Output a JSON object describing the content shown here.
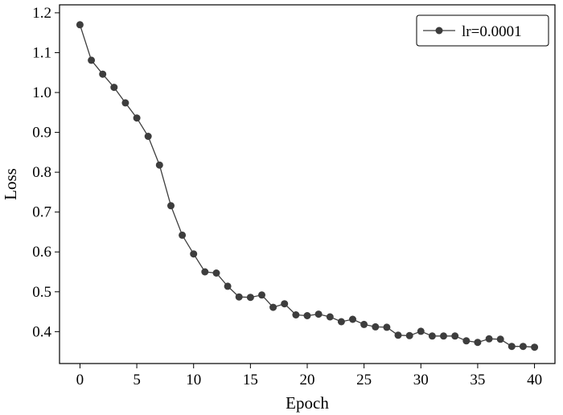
{
  "chart_data": {
    "type": "line",
    "title": "",
    "xlabel": "Epoch",
    "ylabel": "Loss",
    "xlim": [
      -1.8,
      41.8
    ],
    "ylim": [
      0.32,
      1.22
    ],
    "xticks": [
      0,
      5,
      10,
      15,
      20,
      25,
      30,
      35,
      40
    ],
    "xtick_labels": [
      "0",
      "5",
      "10",
      "15",
      "20",
      "25",
      "30",
      "35",
      "40"
    ],
    "yticks": [
      0.4,
      0.5,
      0.6,
      0.7,
      0.8,
      0.9,
      1.0,
      1.1,
      1.2
    ],
    "ytick_labels": [
      "0.4",
      "0.5",
      "0.6",
      "0.7",
      "0.8",
      "0.9",
      "1.0",
      "1.1",
      "1.2"
    ],
    "grid": false,
    "legend_position": "top-right",
    "series": [
      {
        "name": "lr=0.0001",
        "color": "#3d3d3d",
        "marker": "circle",
        "x": [
          0,
          1,
          2,
          3,
          4,
          5,
          6,
          7,
          8,
          9,
          10,
          11,
          12,
          13,
          14,
          15,
          16,
          17,
          18,
          19,
          20,
          21,
          22,
          23,
          24,
          25,
          26,
          27,
          28,
          29,
          30,
          31,
          32,
          33,
          34,
          35,
          36,
          37,
          38,
          39,
          40
        ],
        "y": [
          1.17,
          1.081,
          1.046,
          1.013,
          0.974,
          0.936,
          0.89,
          0.818,
          0.716,
          0.642,
          0.595,
          0.55,
          0.547,
          0.514,
          0.487,
          0.486,
          0.492,
          0.461,
          0.47,
          0.442,
          0.44,
          0.444,
          0.437,
          0.425,
          0.431,
          0.418,
          0.412,
          0.411,
          0.391,
          0.39,
          0.401,
          0.389,
          0.389,
          0.389,
          0.377,
          0.373,
          0.382,
          0.381,
          0.363,
          0.363,
          0.361
        ]
      }
    ]
  }
}
